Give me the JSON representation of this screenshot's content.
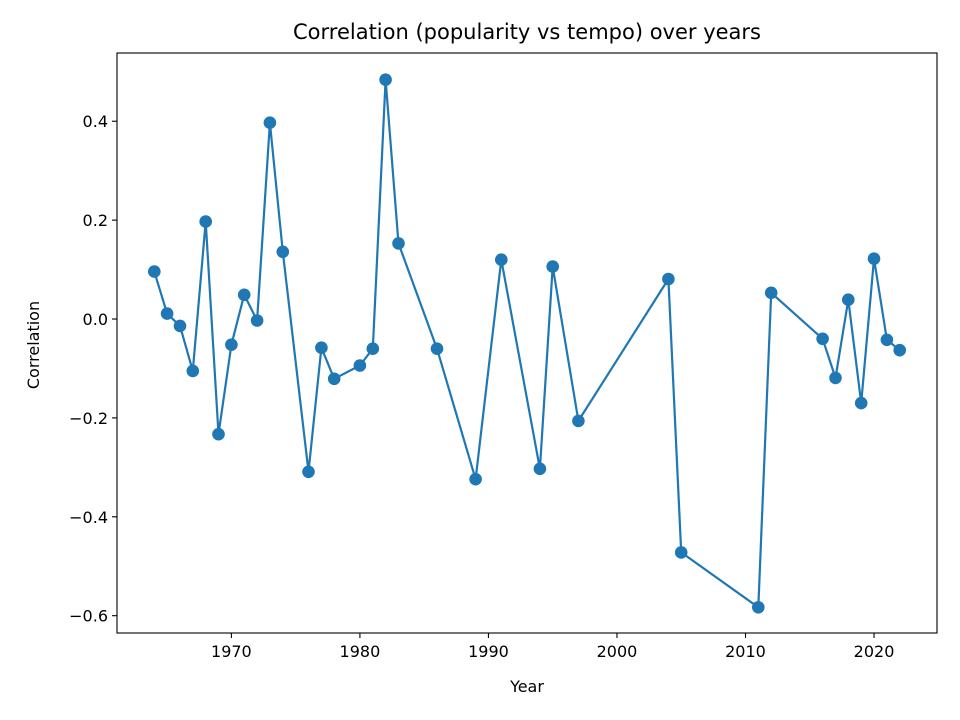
{
  "chart_data": {
    "type": "line",
    "title": "Correlation (popularity vs tempo) over years",
    "xlabel": "Year",
    "ylabel": "Correlation",
    "xlim": [
      1961.1,
      2024.9
    ],
    "ylim": [
      -0.635,
      0.538
    ],
    "xticks": [
      1970,
      1980,
      1990,
      2000,
      2010,
      2020
    ],
    "xtick_labels": [
      "1970",
      "1980",
      "1990",
      "2000",
      "2010",
      "2020"
    ],
    "yticks": [
      -0.6,
      -0.4,
      -0.2,
      0.0,
      0.2,
      0.4
    ],
    "ytick_labels": [
      "−0.6",
      "−0.4",
      "−0.2",
      "0.0",
      "0.2",
      "0.4"
    ],
    "grid": false,
    "colors": {
      "series": "#1f77b4",
      "axes": "#000000",
      "background": "#ffffff"
    },
    "series": [
      {
        "marker": "circle",
        "x": [
          1964,
          1965,
          1966,
          1967,
          1968,
          1969,
          1970,
          1971,
          1972,
          1973,
          1974,
          1976,
          1977,
          1978,
          1980,
          1981,
          1982,
          1983,
          1986,
          1989,
          1991,
          1994,
          1995,
          1997,
          2004,
          2005,
          2011,
          2012,
          2016,
          2017,
          2018,
          2019,
          2020,
          2021,
          2022
        ],
        "y": [
          0.096,
          0.011,
          -0.014,
          -0.105,
          0.197,
          -0.233,
          -0.052,
          0.049,
          -0.003,
          0.397,
          0.136,
          -0.309,
          -0.058,
          -0.121,
          -0.094,
          -0.06,
          0.484,
          0.153,
          -0.06,
          -0.324,
          0.12,
          -0.303,
          0.106,
          -0.206,
          0.081,
          -0.472,
          -0.583,
          0.053,
          -0.04,
          -0.119,
          0.039,
          -0.17,
          0.122,
          -0.042,
          -0.063
        ]
      }
    ]
  }
}
